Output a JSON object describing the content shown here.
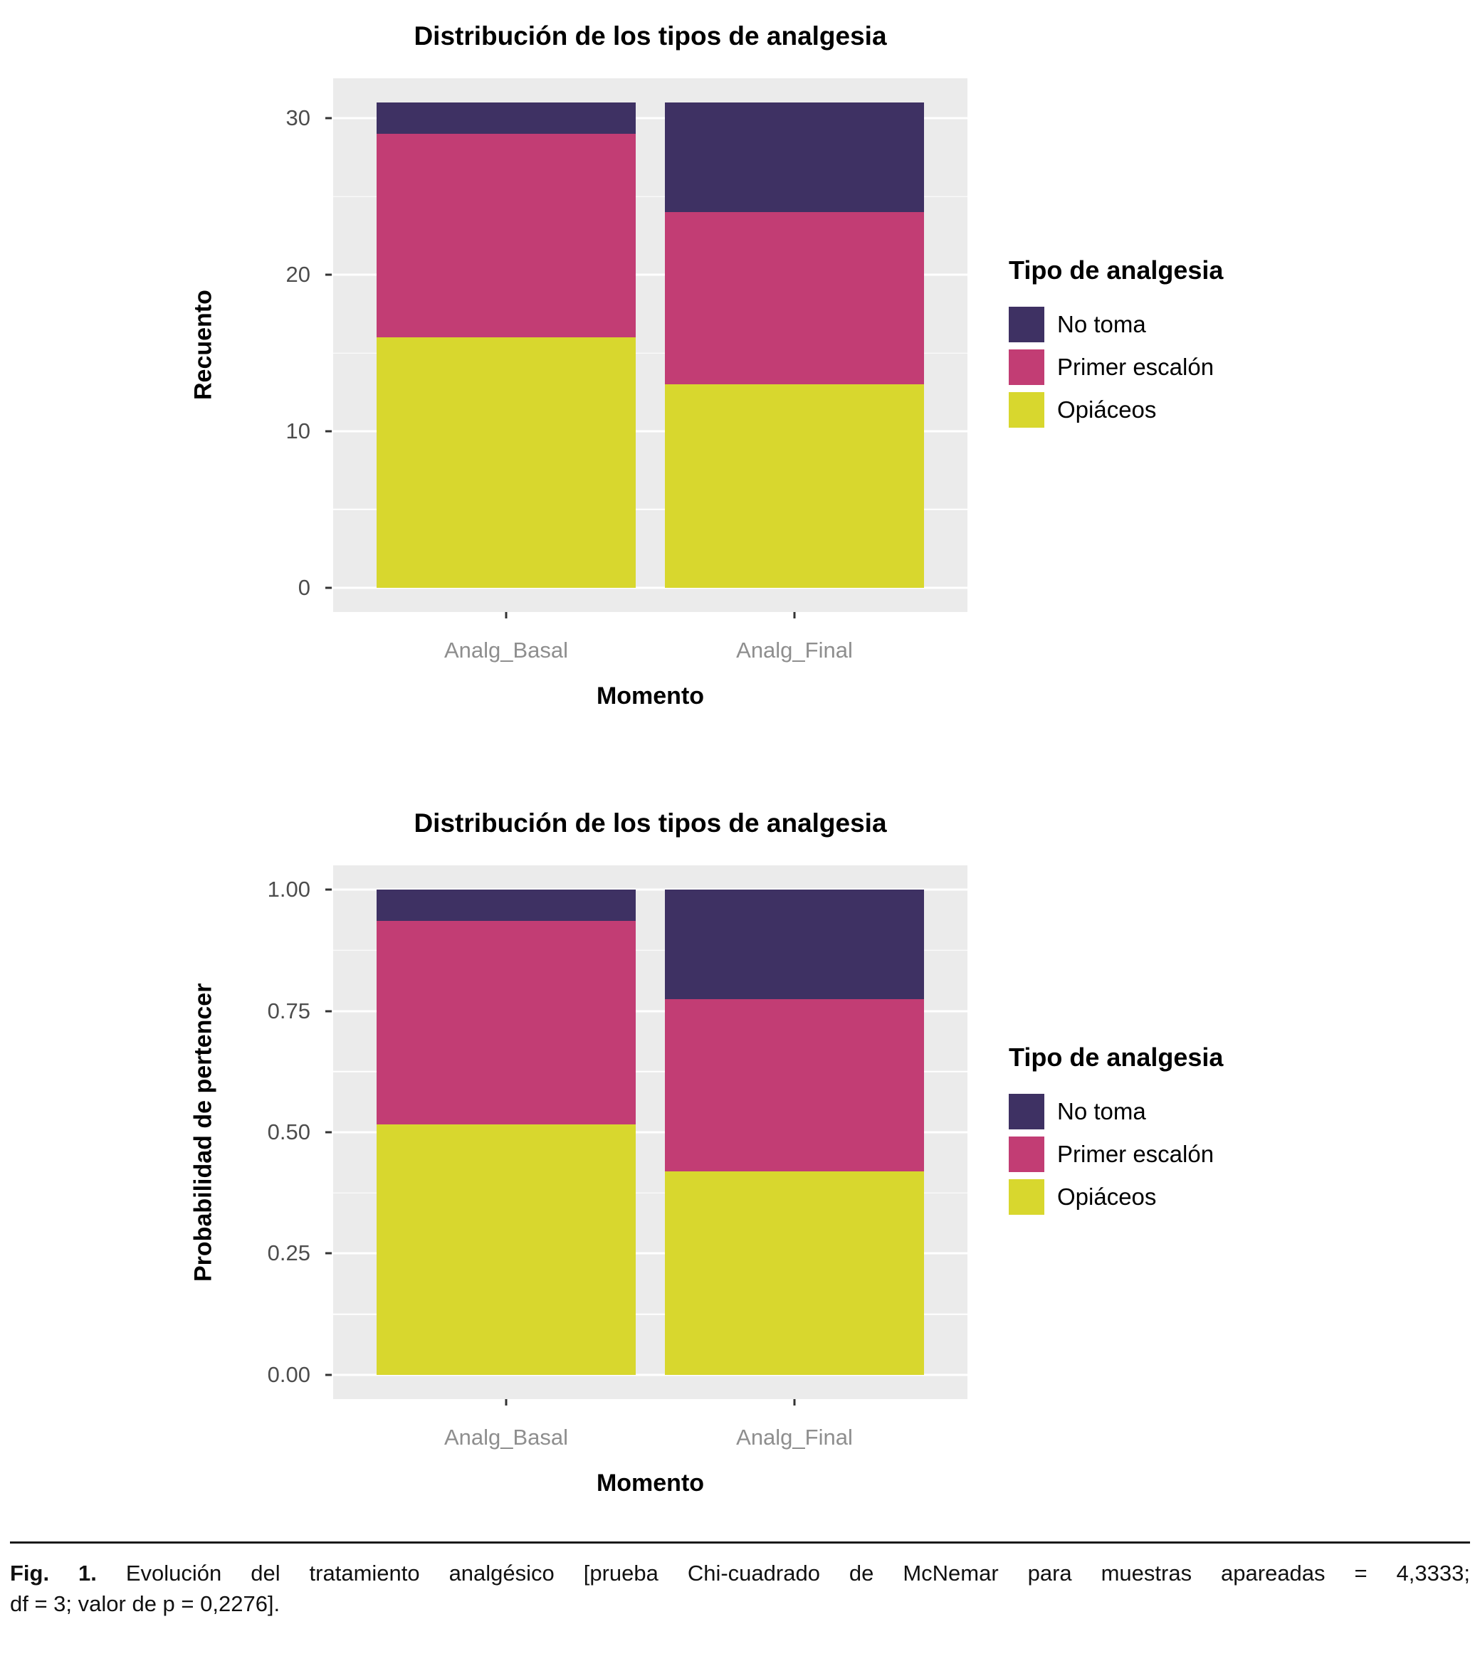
{
  "figure": {
    "caption": {
      "label": "Fig. 1.",
      "line1": "Evolución del tratamiento analgésico [prueba Chi-cuadrado de McNemar para muestras apareadas = 4,3333;",
      "line2": "df = 3; valor de p = 0,2276]."
    }
  },
  "colors": {
    "no_toma": "#3E3163",
    "primer_escalon": "#C23D74",
    "opiaceos": "#D8D72E",
    "panel_bg": "#EBEBEB",
    "gridline": "#FFFFFF",
    "y_tick_text": "#4D4D4D",
    "x_tick_text": "#8E8E8E",
    "tick_mark": "#333333"
  },
  "chart_data": [
    {
      "type": "bar",
      "stacked": true,
      "title": "Distribución de los tipos de analgesia",
      "xlabel": "Momento",
      "ylabel": "Recuento",
      "categories": [
        "Analg_Basal",
        "Analg_Final"
      ],
      "series": [
        {
          "name": "Opiáceos",
          "color_key": "opiaceos",
          "values": [
            16,
            13
          ]
        },
        {
          "name": "Primer escalón",
          "color_key": "primer_escalon",
          "values": [
            13,
            11
          ]
        },
        {
          "name": "No toma",
          "color_key": "no_toma",
          "values": [
            2,
            7
          ]
        }
      ],
      "ylim": [
        0,
        31
      ],
      "yticks": [
        0,
        10,
        20,
        30
      ],
      "ytick_labels": [
        "0",
        "10",
        "20",
        "30"
      ],
      "grid": true,
      "legend_title": "Tipo de analgesia",
      "legend_position": "right"
    },
    {
      "type": "bar",
      "stacked": true,
      "title": "Distribución de los tipos de analgesia",
      "xlabel": "Momento",
      "ylabel": "Probabilidad de pertencer",
      "categories": [
        "Analg_Basal",
        "Analg_Final"
      ],
      "series": [
        {
          "name": "Opiáceos",
          "color_key": "opiaceos",
          "values": [
            0.516,
            0.419
          ]
        },
        {
          "name": "Primer escalón",
          "color_key": "primer_escalon",
          "values": [
            0.419,
            0.355
          ]
        },
        {
          "name": "No toma",
          "color_key": "no_toma",
          "values": [
            0.065,
            0.226
          ]
        }
      ],
      "ylim": [
        0,
        1
      ],
      "yticks": [
        0,
        0.25,
        0.5,
        0.75,
        1
      ],
      "ytick_labels": [
        "0.00",
        "0.25",
        "0.50",
        "0.75",
        "1.00"
      ],
      "grid": true,
      "legend_title": "Tipo de analgesia",
      "legend_position": "right"
    }
  ]
}
